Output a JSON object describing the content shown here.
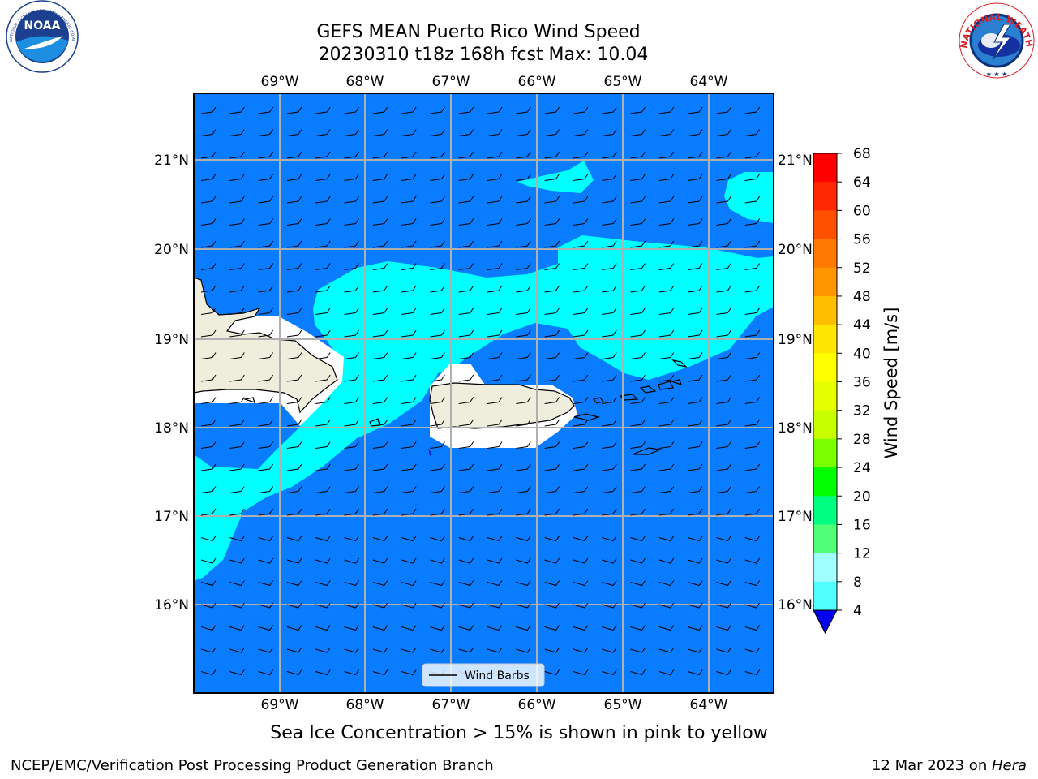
{
  "title": {
    "line1": "GEFS MEAN Puerto Rico Wind Speed",
    "line2": "20230310 t18z 168h fcst   Max: 10.04"
  },
  "map": {
    "lon_labels": [
      "69°W",
      "68°W",
      "67°W",
      "66°W",
      "65°W",
      "64°W"
    ],
    "lat_labels": [
      "21°N",
      "20°N",
      "19°N",
      "18°N",
      "17°N",
      "16°N"
    ],
    "legend_label": "Wind Barbs",
    "colors": {
      "ocean_4_8": "#0a7cff",
      "cyan_8_12": "#00ffff",
      "land": "#efeddc",
      "grid": "#b0b0b0"
    }
  },
  "colorbar": {
    "label": "Wind Speed [m/s]",
    "ticks": [
      "68",
      "64",
      "60",
      "56",
      "52",
      "48",
      "44",
      "40",
      "36",
      "32",
      "28",
      "24",
      "20",
      "16",
      "12",
      "8",
      "4"
    ],
    "bands": [
      "#ff0000",
      "#ff2800",
      "#ff5000",
      "#ff7800",
      "#ff9600",
      "#ffbe00",
      "#ffe600",
      "#ffff00",
      "#e6ff00",
      "#c8ff00",
      "#78ff00",
      "#00ff00",
      "#00ff80",
      "#50ff78",
      "#a0ffff",
      "#50ffff",
      "#00ffff",
      "#0a7cff"
    ],
    "under_color": "#0000ee"
  },
  "logos": {
    "noaa_text": "NOAA",
    "noaa_ring": "NATIONAL OCEANIC AND ATMOSPHERIC ADMINISTRATION · U.S. DEPARTMENT OF COMMERCE",
    "nws_ring": "NATIONAL WEATHER SERVICE"
  },
  "note": "Sea Ice Concentration > 15% is shown in pink to yellow",
  "footer": {
    "left": "NCEP/EMC/Verification Post Processing Product Generation Branch",
    "date": "12 Mar 2023 on ",
    "machine": "Hera"
  }
}
